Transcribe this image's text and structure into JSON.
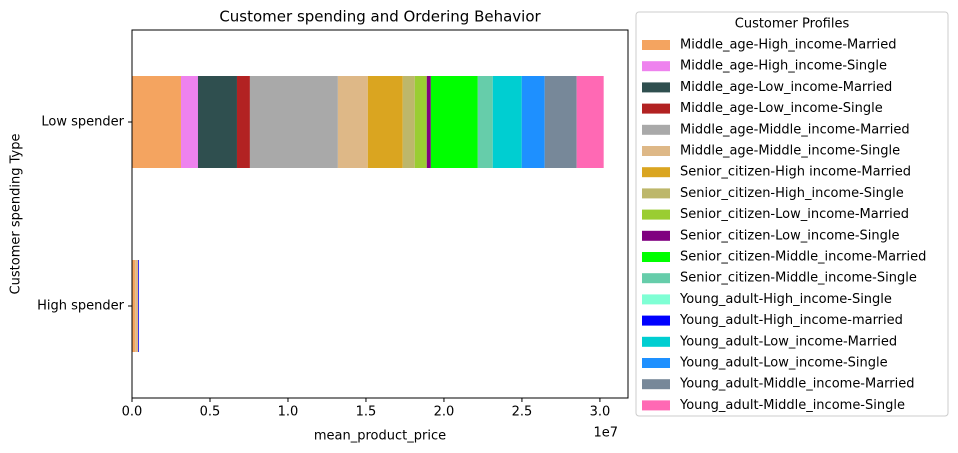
{
  "chart_data": {
    "type": "stacked-barh",
    "title": "Customer spending and Ordering Behavior",
    "x_label": "mean_product_price",
    "y_label": "Customer spending Type",
    "x_offset_label": "1e7",
    "legend_title": "Customer Profiles",
    "categories": [
      "High spender",
      "Low spender"
    ],
    "xlim": [
      0,
      3.18
    ],
    "xticks": [
      {
        "value": 0,
        "label": "0.0"
      },
      0.5,
      {
        "value": 1,
        "label": "1.0"
      },
      1.5,
      {
        "value": 2,
        "label": "2.0"
      },
      2.5,
      {
        "value": 3,
        "label": "3.0"
      }
    ],
    "series": [
      {
        "name": "Middle_age-High_income-Married",
        "color": "#f4a460",
        "values": [
          0.02,
          0.314
        ]
      },
      {
        "name": "Middle_age-High_income-Single",
        "color": "#ee82ee",
        "values": [
          0,
          0.109
        ]
      },
      {
        "name": "Middle_age-Low_income-Married",
        "color": "#2f4f4f",
        "values": [
          0,
          0.25
        ]
      },
      {
        "name": "Middle_age-Low_income-Single",
        "color": "#b22222",
        "values": [
          0,
          0.083
        ]
      },
      {
        "name": "Middle_age-Middle_income-Married",
        "color": "#a9a9a9",
        "values": [
          0,
          0.564
        ]
      },
      {
        "name": "Middle_age-Middle_income-Single",
        "color": "#deb887",
        "values": [
          0.02,
          0.192
        ]
      },
      {
        "name": "Senior_citizen-High income-Married",
        "color": "#daa520",
        "values": [
          0,
          0.224
        ]
      },
      {
        "name": "Senior_citizen-High_income-Single",
        "color": "#bdb76b",
        "values": [
          0,
          0.077
        ]
      },
      {
        "name": "Senior_citizen-Low_income-Married",
        "color": "#9acd32",
        "values": [
          0,
          0.077
        ]
      },
      {
        "name": "Senior_citizen-Low_income-Single",
        "color": "#800080",
        "values": [
          0,
          0.026
        ]
      },
      {
        "name": "Senior_citizen-Middle_income-Married",
        "color": "#00ff00",
        "values": [
          0,
          0.301
        ]
      },
      {
        "name": "Senior_citizen-Middle_income-Single",
        "color": "#66cdaa",
        "values": [
          0,
          0.096
        ]
      },
      {
        "name": "Young_adult-High_income-Single",
        "color": "#7fffd4",
        "values": [
          0,
          0
        ]
      },
      {
        "name": "Young_adult-High_income-married",
        "color": "#0000ff",
        "values": [
          0.005,
          0
        ]
      },
      {
        "name": "Young_adult-Low_income-Married",
        "color": "#00ced1",
        "values": [
          0,
          0.186
        ]
      },
      {
        "name": "Young_adult-Low_income-Single",
        "color": "#1e90ff",
        "values": [
          0,
          0.147
        ]
      },
      {
        "name": "Young_adult-Middle_income-Married",
        "color": "#778899",
        "values": [
          0,
          0.205
        ]
      },
      {
        "name": "Young_adult-Middle_income-Single",
        "color": "#ff69b4",
        "values": [
          0,
          0.173
        ]
      }
    ]
  }
}
